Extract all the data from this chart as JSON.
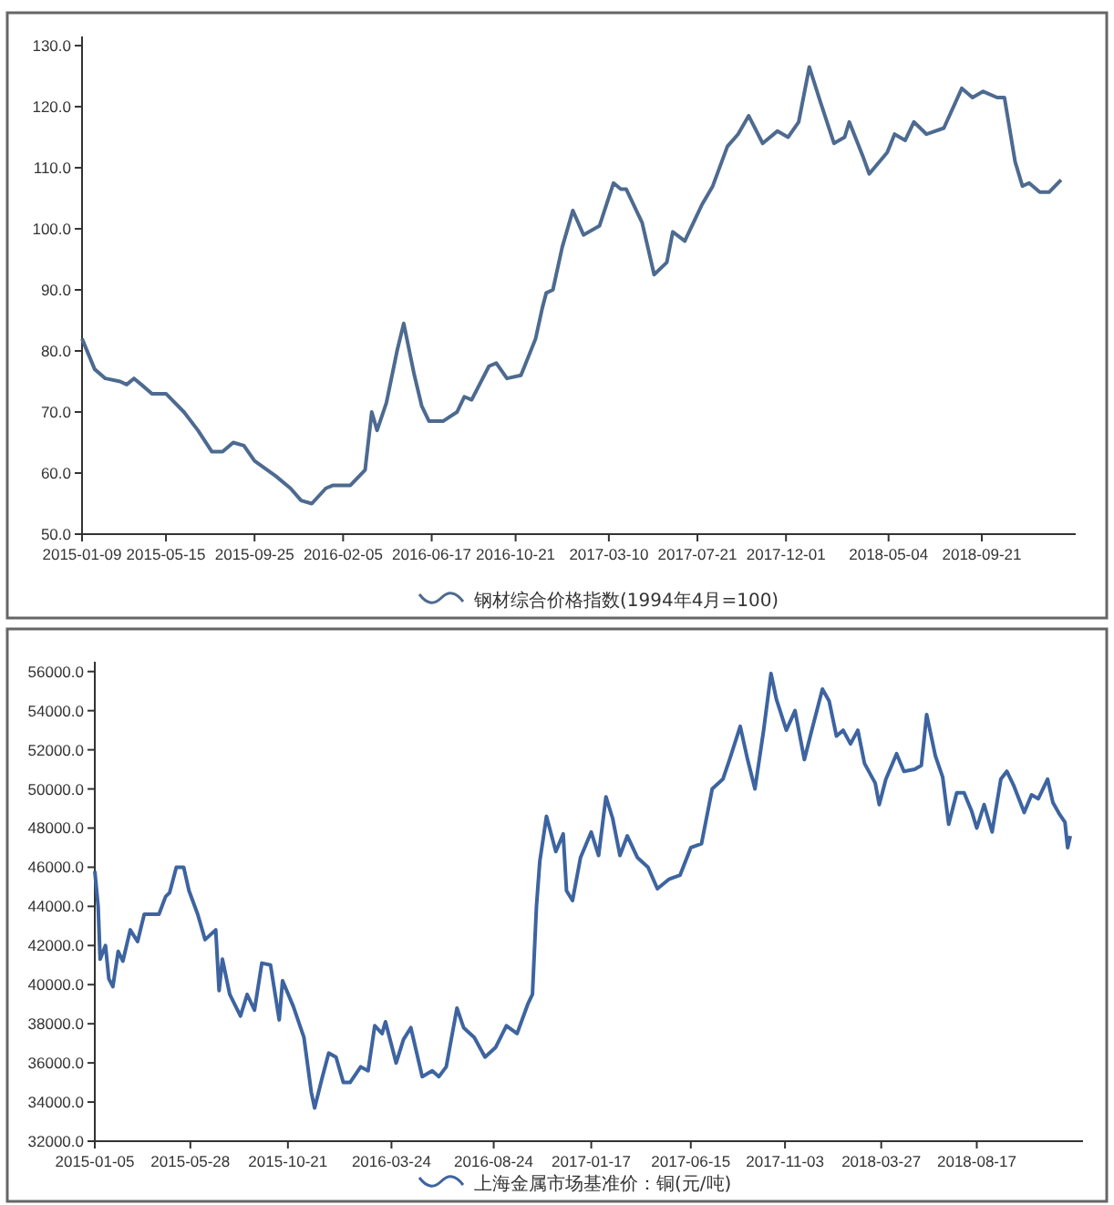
{
  "chart_data": [
    {
      "type": "line",
      "legend": "bottom",
      "xlim": [
        "2015-01-09",
        "2019-02-09"
      ],
      "ylim": [
        50,
        131.5
      ],
      "xticks": [
        {
          "value": "2015-01-09",
          "label": "2015-01-09"
        },
        {
          "value": "2015-05-15",
          "label": "2015-05-15"
        },
        {
          "value": "2015-09-25",
          "label": "2015-09-25"
        },
        {
          "value": "2016-02-05",
          "label": "2016-02-05"
        },
        {
          "value": "2016-06-17",
          "label": "2016-06-17"
        },
        {
          "value": "2016-10-21",
          "label": "2016-10-21"
        },
        {
          "value": "2017-03-10",
          "label": "2017-03-10"
        },
        {
          "value": "2017-07-21",
          "label": "2017-07-21"
        },
        {
          "value": "2017-12-01",
          "label": "2017-12-01"
        },
        {
          "value": "2018-05-04",
          "label": "2018-05-04"
        },
        {
          "value": "2018-09-21",
          "label": "2018-09-21"
        }
      ],
      "yticks": [
        {
          "value": 50,
          "label": "50.0"
        },
        {
          "value": 60,
          "label": "60.0"
        },
        {
          "value": 70,
          "label": "70.0"
        },
        {
          "value": 80,
          "label": "80.0"
        },
        {
          "value": 90,
          "label": "90.0"
        },
        {
          "value": 100,
          "label": "100.0"
        },
        {
          "value": 110,
          "label": "110.0"
        },
        {
          "value": 120,
          "label": "120.0"
        },
        {
          "value": 130,
          "label": "130.0"
        }
      ],
      "x": [
        "2015-01-09",
        "2015-01-28",
        "2015-02-13",
        "2015-03-07",
        "2015-03-17",
        "2015-03-28",
        "2015-04-08",
        "2015-04-24",
        "2015-05-15",
        "2015-06-11",
        "2015-07-02",
        "2015-07-23",
        "2015-08-08",
        "2015-08-24",
        "2015-09-09",
        "2015-09-25",
        "2015-10-27",
        "2015-11-18",
        "2015-12-04",
        "2015-12-20",
        "2016-01-10",
        "2016-01-21",
        "2016-02-16",
        "2016-03-09",
        "2016-03-19",
        "2016-03-27",
        "2016-04-10",
        "2016-04-26",
        "2016-05-06",
        "2016-05-22",
        "2016-06-02",
        "2016-06-13",
        "2016-07-04",
        "2016-07-25",
        "2016-08-05",
        "2016-08-16",
        "2016-09-11",
        "2016-09-22",
        "2016-10-08",
        "2016-10-29",
        "2016-11-20",
        "2016-11-30",
        "2016-12-06",
        "2016-12-16",
        "2016-12-30",
        "2017-01-15",
        "2017-01-31",
        "2017-02-24",
        "2017-03-17",
        "2017-03-28",
        "2017-04-05",
        "2017-04-29",
        "2017-05-17",
        "2017-06-05",
        "2017-06-14",
        "2017-07-02",
        "2017-07-28",
        "2017-08-13",
        "2017-09-04",
        "2017-09-20",
        "2017-10-06",
        "2017-10-27",
        "2017-11-18",
        "2017-12-04",
        "2017-12-20",
        "2018-01-05",
        "2018-01-21",
        "2018-02-11",
        "2018-02-27",
        "2018-03-06",
        "2018-03-26",
        "2018-04-05",
        "2018-05-02",
        "2018-05-13",
        "2018-05-29",
        "2018-06-11",
        "2018-06-30",
        "2018-07-26",
        "2018-08-22",
        "2018-09-07",
        "2018-09-23",
        "2018-10-14",
        "2018-10-25",
        "2018-11-10",
        "2018-11-21",
        "2018-12-01",
        "2018-12-17",
        "2018-12-31",
        "2019-01-18"
      ],
      "series": [
        {
          "name": "钢材综合价格指数(1994年4月=100)",
          "color": "#4d6a90",
          "values": [
            82,
            77,
            75.5,
            75,
            74.5,
            75.5,
            74.5,
            73,
            73,
            70,
            67,
            63.5,
            63.5,
            65,
            64.5,
            62,
            59.5,
            57.5,
            55.5,
            55,
            57.5,
            58,
            58,
            60.5,
            70,
            67,
            71.5,
            80,
            84.5,
            76,
            71,
            68.5,
            68.5,
            70,
            72.5,
            72,
            77.5,
            78,
            75.5,
            76,
            82,
            87,
            89.5,
            90,
            97,
            103,
            99,
            100.5,
            107.5,
            106.5,
            106.5,
            101,
            92.5,
            94.5,
            99.5,
            98,
            104,
            107,
            113.5,
            115.5,
            118.5,
            114,
            116,
            115,
            117.5,
            126.5,
            121,
            114,
            115,
            117.5,
            112,
            109,
            112.5,
            115.5,
            114.5,
            117.5,
            115.5,
            116.5,
            123,
            121.5,
            122.5,
            121.5,
            121.5,
            111,
            107,
            107.5,
            106,
            106,
            108
          ]
        }
      ]
    },
    {
      "type": "line",
      "legend": "bottom",
      "xlim": [
        "2015-01-05",
        "2019-01-23"
      ],
      "ylim": [
        32000,
        56500
      ],
      "xticks": [
        {
          "value": "2015-01-05",
          "label": "2015-01-05"
        },
        {
          "value": "2015-05-28",
          "label": "2015-05-28"
        },
        {
          "value": "2015-10-21",
          "label": "2015-10-21"
        },
        {
          "value": "2016-03-24",
          "label": "2016-03-24"
        },
        {
          "value": "2016-08-24",
          "label": "2016-08-24"
        },
        {
          "value": "2017-01-17",
          "label": "2017-01-17"
        },
        {
          "value": "2017-06-15",
          "label": "2017-06-15"
        },
        {
          "value": "2017-11-03",
          "label": "2017-11-03"
        },
        {
          "value": "2018-03-27",
          "label": "2018-03-27"
        },
        {
          "value": "2018-08-17",
          "label": "2018-08-17"
        }
      ],
      "yticks": [
        {
          "value": 32000,
          "label": "32000.0"
        },
        {
          "value": 34000,
          "label": "34000.0"
        },
        {
          "value": 36000,
          "label": "36000.0"
        },
        {
          "value": 38000,
          "label": "38000.0"
        },
        {
          "value": 40000,
          "label": "40000.0"
        },
        {
          "value": 42000,
          "label": "42000.0"
        },
        {
          "value": 44000,
          "label": "44000.0"
        },
        {
          "value": 46000,
          "label": "46000.0"
        },
        {
          "value": 48000,
          "label": "48000.0"
        },
        {
          "value": 50000,
          "label": "50000.0"
        },
        {
          "value": 52000,
          "label": "52000.0"
        },
        {
          "value": 54000,
          "label": "54000.0"
        },
        {
          "value": 56000,
          "label": "56000.0"
        }
      ],
      "x": [
        "2015-01-05",
        "2015-01-10",
        "2015-01-13",
        "2015-01-21",
        "2015-01-26",
        "2015-02-01",
        "2015-02-09",
        "2015-02-16",
        "2015-02-27",
        "2015-03-10",
        "2015-03-20",
        "2015-04-11",
        "2015-04-21",
        "2015-04-27",
        "2015-05-07",
        "2015-05-18",
        "2015-05-26",
        "2015-06-08",
        "2015-06-19",
        "2015-07-05",
        "2015-07-10",
        "2015-07-15",
        "2015-07-26",
        "2015-08-11",
        "2015-08-21",
        "2015-09-01",
        "2015-09-12",
        "2015-09-25",
        "2015-10-08",
        "2015-10-13",
        "2015-10-29",
        "2015-11-14",
        "2015-11-25",
        "2015-11-30",
        "2015-12-11",
        "2015-12-21",
        "2016-01-01",
        "2016-01-12",
        "2016-01-22",
        "2016-02-07",
        "2016-02-18",
        "2016-02-28",
        "2016-03-10",
        "2016-03-15",
        "2016-03-31",
        "2016-04-11",
        "2016-04-22",
        "2016-05-09",
        "2016-05-24",
        "2016-06-03",
        "2016-06-14",
        "2016-06-30",
        "2016-07-10",
        "2016-07-26",
        "2016-08-11",
        "2016-08-27",
        "2016-09-12",
        "2016-09-28",
        "2016-10-14",
        "2016-10-21",
        "2016-10-27",
        "2016-11-01",
        "2016-11-11",
        "2016-11-25",
        "2016-12-06",
        "2016-12-11",
        "2016-12-20",
        "2017-01-01",
        "2017-01-17",
        "2017-01-28",
        "2017-02-08",
        "2017-02-18",
        "2017-03-01",
        "2017-03-12",
        "2017-03-27",
        "2017-04-12",
        "2017-04-26",
        "2017-05-14",
        "2017-05-30",
        "2017-06-15",
        "2017-07-01",
        "2017-07-17",
        "2017-08-02",
        "2017-08-12",
        "2017-08-28",
        "2017-09-08",
        "2017-09-19",
        "2017-10-02",
        "2017-10-13",
        "2017-10-21",
        "2017-11-05",
        "2017-11-18",
        "2017-12-02",
        "2017-12-13",
        "2017-12-29",
        "2018-01-08",
        "2018-01-19",
        "2018-01-29",
        "2018-02-09",
        "2018-02-20",
        "2018-03-02",
        "2018-03-18",
        "2018-03-24",
        "2018-04-03",
        "2018-04-19",
        "2018-04-30",
        "2018-05-16",
        "2018-05-26",
        "2018-06-03",
        "2018-06-16",
        "2018-06-27",
        "2018-07-06",
        "2018-07-18",
        "2018-07-29",
        "2018-08-09",
        "2018-08-17",
        "2018-08-28",
        "2018-09-09",
        "2018-09-22",
        "2018-10-01",
        "2018-10-11",
        "2018-10-27",
        "2018-11-07",
        "2018-11-17",
        "2018-12-01",
        "2018-12-09",
        "2018-12-19",
        "2018-12-27",
        "2018-12-31",
        "2019-01-04"
      ],
      "series": [
        {
          "name": "上海金属市场基准价：铜(元/吨)",
          "color": "#3d64a0",
          "values": [
            45800,
            44000,
            41300,
            42000,
            40300,
            39900,
            41700,
            41200,
            42800,
            42200,
            43600,
            43600,
            44500,
            44700,
            46000,
            46000,
            44800,
            43600,
            42300,
            42800,
            39700,
            41300,
            39500,
            38400,
            39500,
            38700,
            41100,
            41000,
            38200,
            40200,
            38900,
            37300,
            34500,
            33700,
            35200,
            36500,
            36300,
            35000,
            35000,
            35800,
            35600,
            37900,
            37500,
            38100,
            36000,
            37200,
            37800,
            35300,
            35600,
            35300,
            35800,
            38800,
            37800,
            37300,
            36300,
            36800,
            37900,
            37500,
            39000,
            39500,
            44000,
            46300,
            48600,
            46800,
            47700,
            44800,
            44300,
            46500,
            47800,
            46600,
            49600,
            48500,
            46600,
            47600,
            46500,
            46000,
            44900,
            45400,
            45600,
            47000,
            47200,
            50000,
            50500,
            51500,
            53200,
            51500,
            50000,
            53000,
            55900,
            54600,
            53000,
            54000,
            51500,
            53000,
            55100,
            54500,
            52700,
            53000,
            52300,
            53000,
            51300,
            50300,
            49200,
            50500,
            51800,
            50900,
            51000,
            51200,
            53800,
            51700,
            50600,
            48200,
            49800,
            49800,
            48900,
            48000,
            49200,
            47800,
            50500,
            50900,
            50200,
            48800,
            49700,
            49500,
            50500,
            49300,
            48700,
            48300,
            47000,
            47600
          ]
        }
      ]
    }
  ]
}
